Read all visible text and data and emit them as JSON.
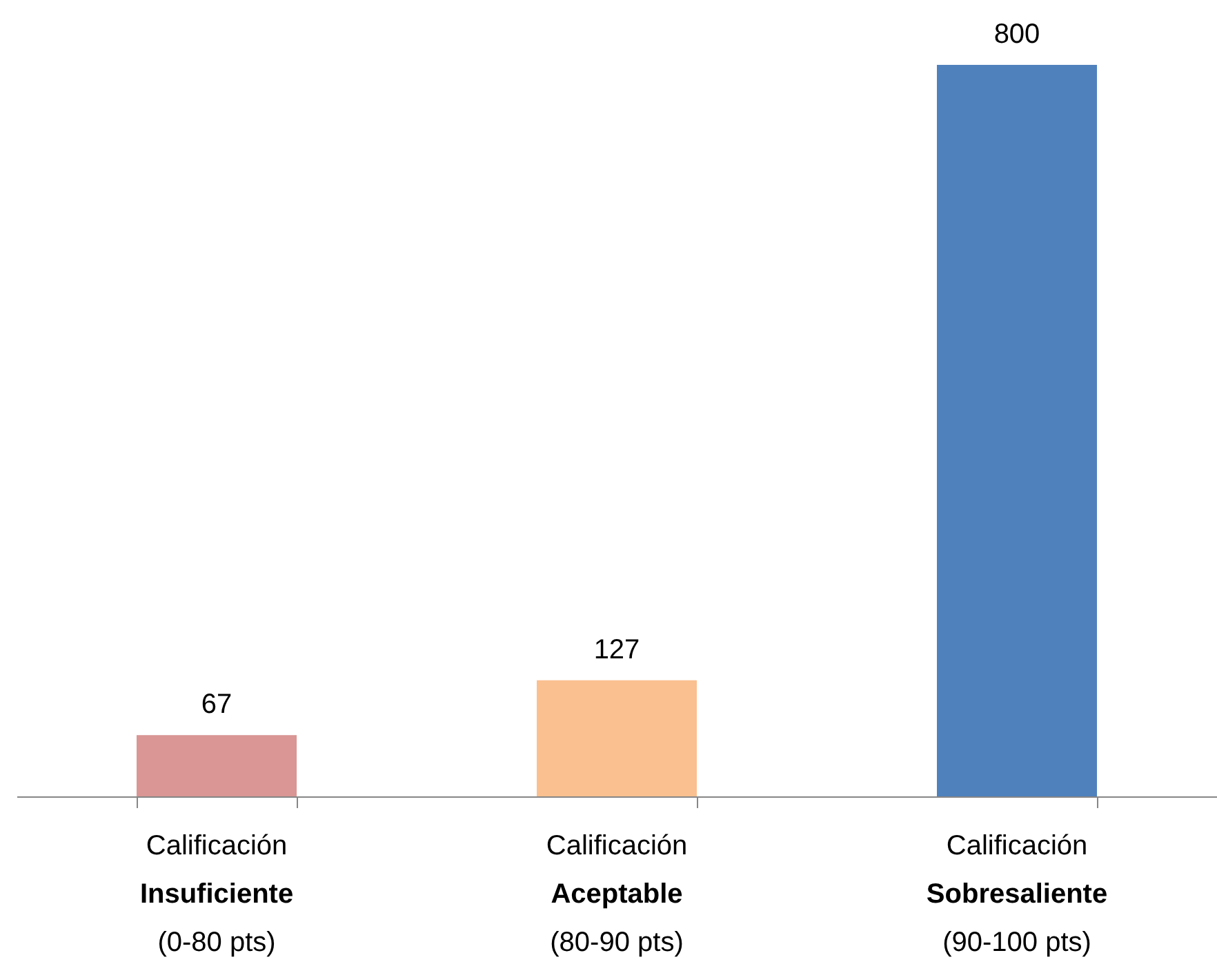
{
  "chart_data": {
    "type": "bar",
    "categories": [
      "Calificación\nInsuficiente\n(0-80 pts)",
      "Calificación\nAceptable\n(80-90 pts)",
      "Calificación\nSobresaliente\n(90-100 pts)"
    ],
    "values": [
      67,
      127,
      800
    ],
    "colors": [
      "#d99694",
      "#fac090",
      "#4f81bd"
    ],
    "data_labels": true
  }
}
